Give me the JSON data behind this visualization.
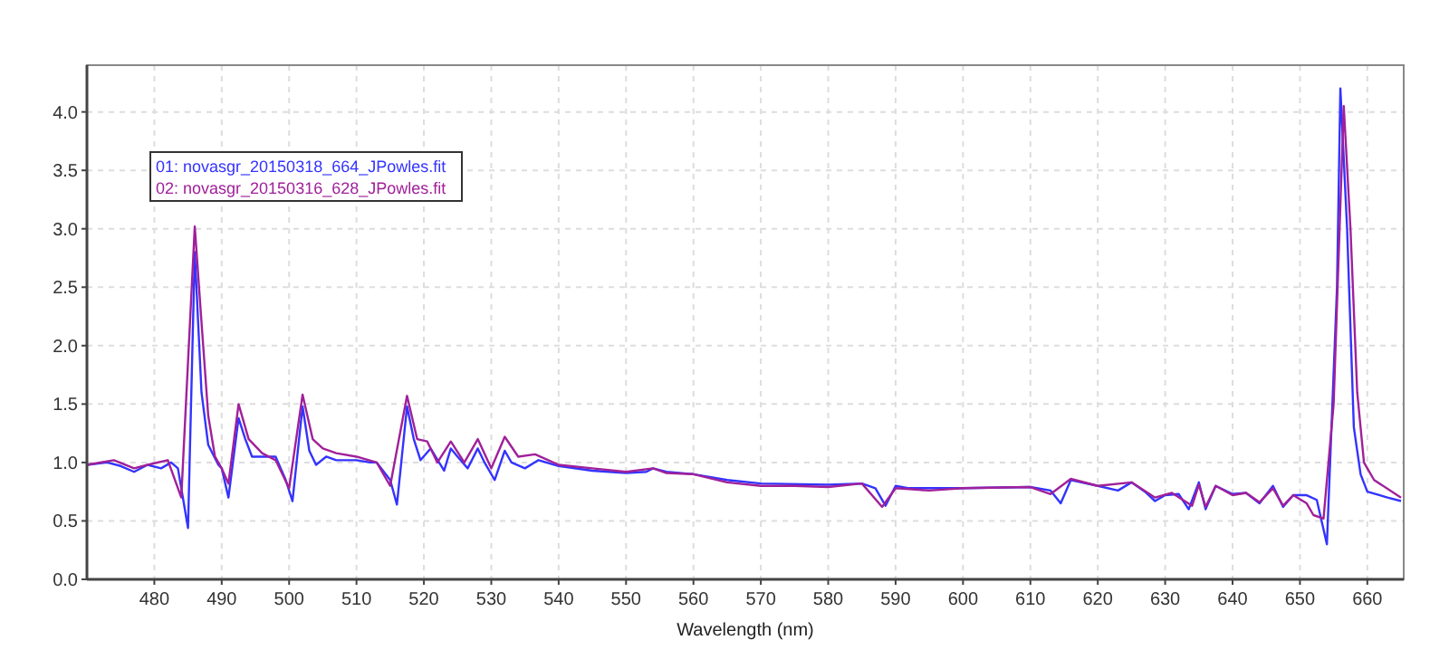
{
  "chart_data": {
    "type": "line",
    "xlabel": "Wavelength (nm)",
    "xlim": [
      470,
      665.4
    ],
    "ylim": [
      0,
      4.4
    ],
    "xticks": [
      480,
      490,
      500,
      510,
      520,
      530,
      540,
      550,
      560,
      570,
      580,
      590,
      600,
      610,
      620,
      630,
      640,
      650,
      660
    ],
    "yticks": [
      {
        "value": 0,
        "label": "0.0"
      },
      {
        "value": 0.5,
        "label": "0.5"
      },
      {
        "value": 1,
        "label": "1.0"
      },
      {
        "value": 1.5,
        "label": "1.5"
      },
      {
        "value": 2,
        "label": "2.0"
      },
      {
        "value": 2.5,
        "label": "2.5"
      },
      {
        "value": 3,
        "label": "3.0"
      },
      {
        "value": 3.5,
        "label": "3.5"
      },
      {
        "value": 4,
        "label": "4.0"
      }
    ],
    "grid": true,
    "legend": "top left",
    "line_style": "solid",
    "marker": "none",
    "series": [
      {
        "name": "01: novasgr_20150318_664_JPowles.fit",
        "color": "#3333ff",
        "x": [
          470,
          473,
          475,
          477,
          479,
          481,
          482.5,
          483.5,
          485,
          486,
          487,
          488,
          489.5,
          490,
          491,
          492.5,
          493.5,
          494.5,
          496,
          498,
          499.5,
          500.5,
          502,
          503,
          504,
          505.5,
          507,
          510,
          512,
          513,
          515,
          516,
          517.5,
          518.5,
          519.5,
          521,
          523,
          524,
          525,
          526.5,
          528,
          529,
          530.5,
          532,
          533,
          535,
          537,
          540,
          545,
          550,
          553,
          554,
          556,
          560,
          565,
          570,
          580,
          585,
          587,
          588.5,
          590,
          592,
          595,
          600,
          610,
          613,
          614.5,
          616,
          620,
          623,
          625,
          627,
          628.5,
          630,
          632,
          633.5,
          635,
          636,
          637.5,
          640,
          642,
          644,
          646,
          647.5,
          649,
          651,
          652.5,
          654,
          655.5,
          656,
          657,
          658,
          659,
          660,
          663,
          665
        ],
        "values": [
          0.98,
          1.0,
          0.97,
          0.92,
          0.98,
          0.95,
          1.0,
          0.95,
          0.44,
          2.8,
          1.6,
          1.15,
          0.98,
          0.95,
          0.7,
          1.38,
          1.2,
          1.05,
          1.05,
          1.05,
          0.85,
          0.67,
          1.48,
          1.1,
          0.98,
          1.05,
          1.02,
          1.02,
          1.0,
          1.0,
          0.85,
          0.64,
          1.48,
          1.2,
          1.02,
          1.12,
          0.93,
          1.12,
          1.05,
          0.95,
          1.12,
          1.0,
          0.85,
          1.1,
          1.0,
          0.95,
          1.02,
          0.97,
          0.93,
          0.91,
          0.92,
          0.95,
          0.92,
          0.9,
          0.85,
          0.82,
          0.81,
          0.82,
          0.78,
          0.63,
          0.8,
          0.78,
          0.78,
          0.78,
          0.79,
          0.76,
          0.65,
          0.85,
          0.8,
          0.76,
          0.83,
          0.75,
          0.67,
          0.72,
          0.73,
          0.6,
          0.83,
          0.6,
          0.8,
          0.73,
          0.74,
          0.65,
          0.8,
          0.62,
          0.72,
          0.72,
          0.68,
          0.3,
          2.5,
          4.2,
          3.0,
          1.3,
          0.9,
          0.75,
          0.7,
          0.67
        ]
      },
      {
        "name": "02: novasgr_20150316_628_JPowles.fit",
        "color": "#a0209a",
        "x": [
          470,
          474,
          477,
          479,
          482,
          484,
          486,
          487,
          488,
          489,
          490,
          491,
          492.5,
          494,
          496,
          498,
          500,
          502,
          503.5,
          505,
          507,
          510,
          513,
          515,
          517.5,
          519,
          520.5,
          522,
          524,
          526,
          528,
          530,
          532,
          534,
          536.5,
          540,
          545,
          550,
          554,
          556,
          560,
          565,
          570,
          575,
          580,
          585,
          588,
          590,
          595,
          600,
          610,
          613,
          616,
          620,
          625,
          628.5,
          631,
          634,
          635,
          636,
          637.5,
          640,
          642,
          644,
          646,
          647.5,
          649,
          651,
          652,
          653.5,
          655,
          656.5,
          657.5,
          658.5,
          659.5,
          661,
          665
        ],
        "values": [
          0.98,
          1.02,
          0.95,
          0.98,
          1.02,
          0.7,
          3.02,
          2.2,
          1.4,
          1.05,
          0.95,
          0.82,
          1.5,
          1.2,
          1.08,
          1.02,
          0.78,
          1.58,
          1.2,
          1.12,
          1.08,
          1.05,
          1.0,
          0.8,
          1.57,
          1.2,
          1.18,
          1.0,
          1.18,
          1.0,
          1.2,
          0.95,
          1.22,
          1.05,
          1.07,
          0.98,
          0.95,
          0.92,
          0.95,
          0.91,
          0.9,
          0.83,
          0.8,
          0.8,
          0.79,
          0.82,
          0.62,
          0.78,
          0.76,
          0.78,
          0.79,
          0.73,
          0.86,
          0.8,
          0.83,
          0.7,
          0.74,
          0.63,
          0.81,
          0.62,
          0.8,
          0.72,
          0.74,
          0.66,
          0.78,
          0.63,
          0.72,
          0.65,
          0.55,
          0.52,
          1.5,
          4.05,
          3.0,
          1.6,
          1.0,
          0.85,
          0.7
        ]
      }
    ]
  }
}
